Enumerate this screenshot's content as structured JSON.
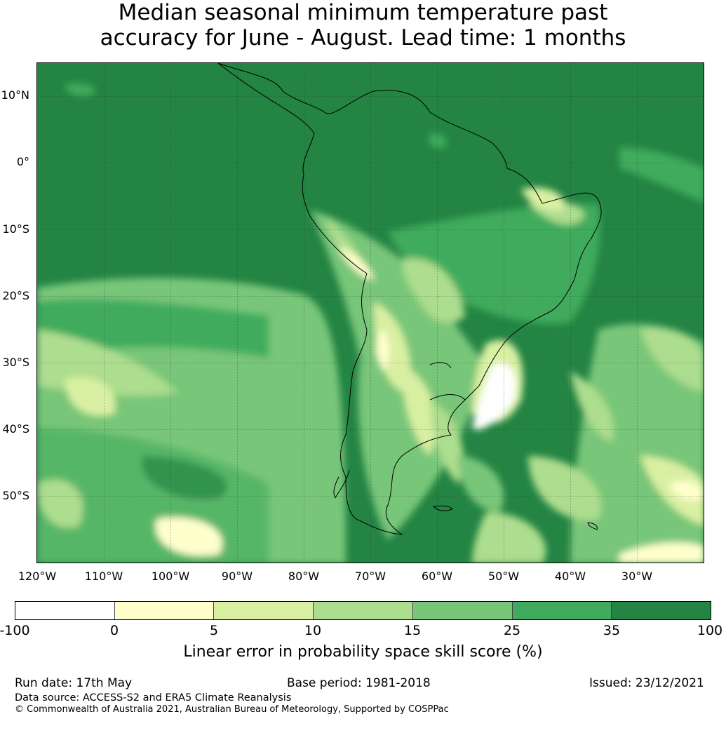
{
  "title": {
    "line1": "Median seasonal minimum temperature past",
    "line2": "accuracy for June - August. Lead time: 1 months"
  },
  "map": {
    "lat_labels": [
      "10°N",
      "0°",
      "10°S",
      "20°S",
      "30°S",
      "40°S",
      "50°S"
    ],
    "lon_labels": [
      "120°W",
      "110°W",
      "100°W",
      "90°W",
      "80°W",
      "70°W",
      "60°W",
      "50°W",
      "40°W",
      "30°W"
    ]
  },
  "colorbar": {
    "ticks": [
      "-100",
      "0",
      "5",
      "10",
      "15",
      "25",
      "35",
      "100"
    ],
    "colors": [
      "#ffffff",
      "#ffffcc",
      "#d9f0a3",
      "#addd8e",
      "#78c679",
      "#41ab5d",
      "#238443"
    ],
    "label": "Linear error in probability space skill score (%)"
  },
  "footer": {
    "run_date": "Run date: 17th May",
    "base_period": "Base period: 1981-2018",
    "issued": "Issued: 23/12/2021",
    "data_source": "Data source: ACCESS-S2 and ERA5 Climate Reanalysis",
    "copyright": "© Commonwealth of Australia 2021, Australian Bureau of Meteorology, Supported by COSPPac"
  }
}
